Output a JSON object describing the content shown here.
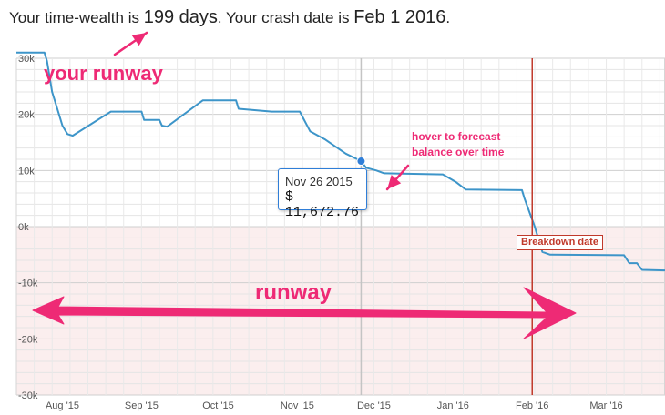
{
  "headline": {
    "prefix": "Your time-wealth is ",
    "days": "199 days",
    "middle": ". Your crash date is ",
    "date": "Feb 1 2016",
    "suffix": "."
  },
  "annotations": {
    "your_runway": "your runway",
    "runway": "runway",
    "hover_line1": "hover to forecast",
    "hover_line2": "balance over time",
    "breakdown": "Breakdown date"
  },
  "tooltip": {
    "date": "Nov 26 2015",
    "value": "$ 11,672.76"
  },
  "colors": {
    "line": "#3d95c9",
    "annotation": "#ee2a75",
    "breakdown": "#c0392b",
    "negative_band": "#fbeeee"
  },
  "chart_data": {
    "type": "line",
    "x_ticks": [
      "Aug '15",
      "Sep '15",
      "Oct '15",
      "Nov '15",
      "Dec '15",
      "Jan '16",
      "Feb '16",
      "Mar '16"
    ],
    "y_ticks": [
      "30k",
      "20k",
      "10k",
      "0k",
      "-10k",
      "-20k",
      "-30k"
    ],
    "ylim": [
      -30000,
      30000
    ],
    "xlim": [
      "2015-07-14",
      "2016-03-24"
    ],
    "breakdown_date": "2016-02-01",
    "highlight": {
      "x": "2015-11-26",
      "y": 11672.76
    },
    "series": [
      {
        "points": [
          [
            "2015-07-14",
            31000
          ],
          [
            "2015-07-25",
            31000
          ],
          [
            "2015-07-26",
            29500
          ],
          [
            "2015-07-28",
            24000
          ],
          [
            "2015-07-30",
            21000
          ],
          [
            "2015-08-01",
            18000
          ],
          [
            "2015-08-03",
            16500
          ],
          [
            "2015-08-05",
            16200
          ],
          [
            "2015-08-20",
            20500
          ],
          [
            "2015-09-01",
            20500
          ],
          [
            "2015-09-02",
            19000
          ],
          [
            "2015-09-08",
            19000
          ],
          [
            "2015-09-09",
            18000
          ],
          [
            "2015-09-11",
            17800
          ],
          [
            "2015-09-25",
            22500
          ],
          [
            "2015-10-08",
            22500
          ],
          [
            "2015-10-09",
            21000
          ],
          [
            "2015-10-22",
            20500
          ],
          [
            "2015-11-02",
            20500
          ],
          [
            "2015-11-06",
            17000
          ],
          [
            "2015-11-12",
            15500
          ],
          [
            "2015-11-20",
            13000
          ],
          [
            "2015-11-26",
            11672.76
          ],
          [
            "2015-11-28",
            10500
          ],
          [
            "2015-12-02",
            10000
          ],
          [
            "2015-12-05",
            9500
          ],
          [
            "2015-12-28",
            9300
          ],
          [
            "2016-01-02",
            8000
          ],
          [
            "2016-01-06",
            6600
          ],
          [
            "2016-01-28",
            6500
          ],
          [
            "2016-01-29",
            5000
          ],
          [
            "2016-01-31",
            2500
          ],
          [
            "2016-02-02",
            0
          ],
          [
            "2016-02-05",
            -4500
          ],
          [
            "2016-02-08",
            -5000
          ],
          [
            "2016-03-08",
            -5100
          ],
          [
            "2016-03-10",
            -6500
          ],
          [
            "2016-03-13",
            -6500
          ],
          [
            "2016-03-15",
            -7700
          ],
          [
            "2016-03-24",
            -7800
          ]
        ]
      }
    ]
  }
}
